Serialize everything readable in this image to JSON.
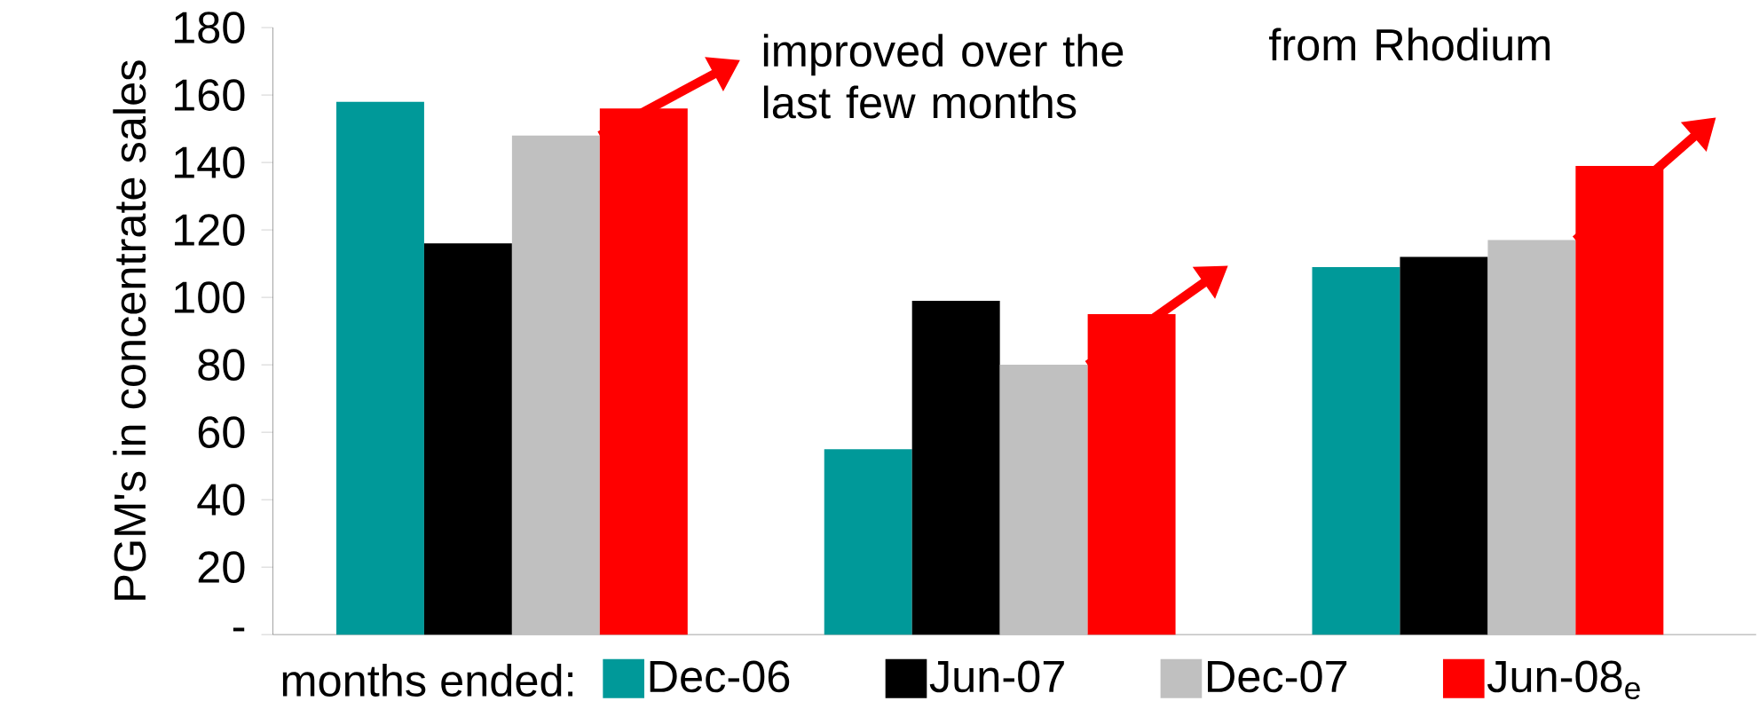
{
  "chart_data": {
    "type": "bar",
    "ylabel": "PGM's in concentrate sales",
    "legend_title": "months ended:",
    "categories": [
      null,
      null,
      null
    ],
    "series": [
      {
        "name": "Dec-06",
        "color": "#009999",
        "values": [
          158,
          55,
          109
        ]
      },
      {
        "name": "Jun-07",
        "color": "#000000",
        "values": [
          116,
          99,
          112
        ]
      },
      {
        "name": "Dec-07",
        "color": "#c0c0c0",
        "values": [
          148,
          80,
          117
        ]
      },
      {
        "name": "Jun-08$_{e}$",
        "color": "#ff0000",
        "values": [
          156,
          95,
          139
        ]
      }
    ],
    "ylim": [
      0,
      180
    ],
    "yticks": [
      {
        "value": 0,
        "label": "-"
      },
      20,
      40,
      60,
      80,
      100,
      120,
      140,
      160,
      180
    ],
    "annotations": [
      "improved over the last few months",
      "from Rhodium"
    ],
    "legend": "bottom"
  }
}
